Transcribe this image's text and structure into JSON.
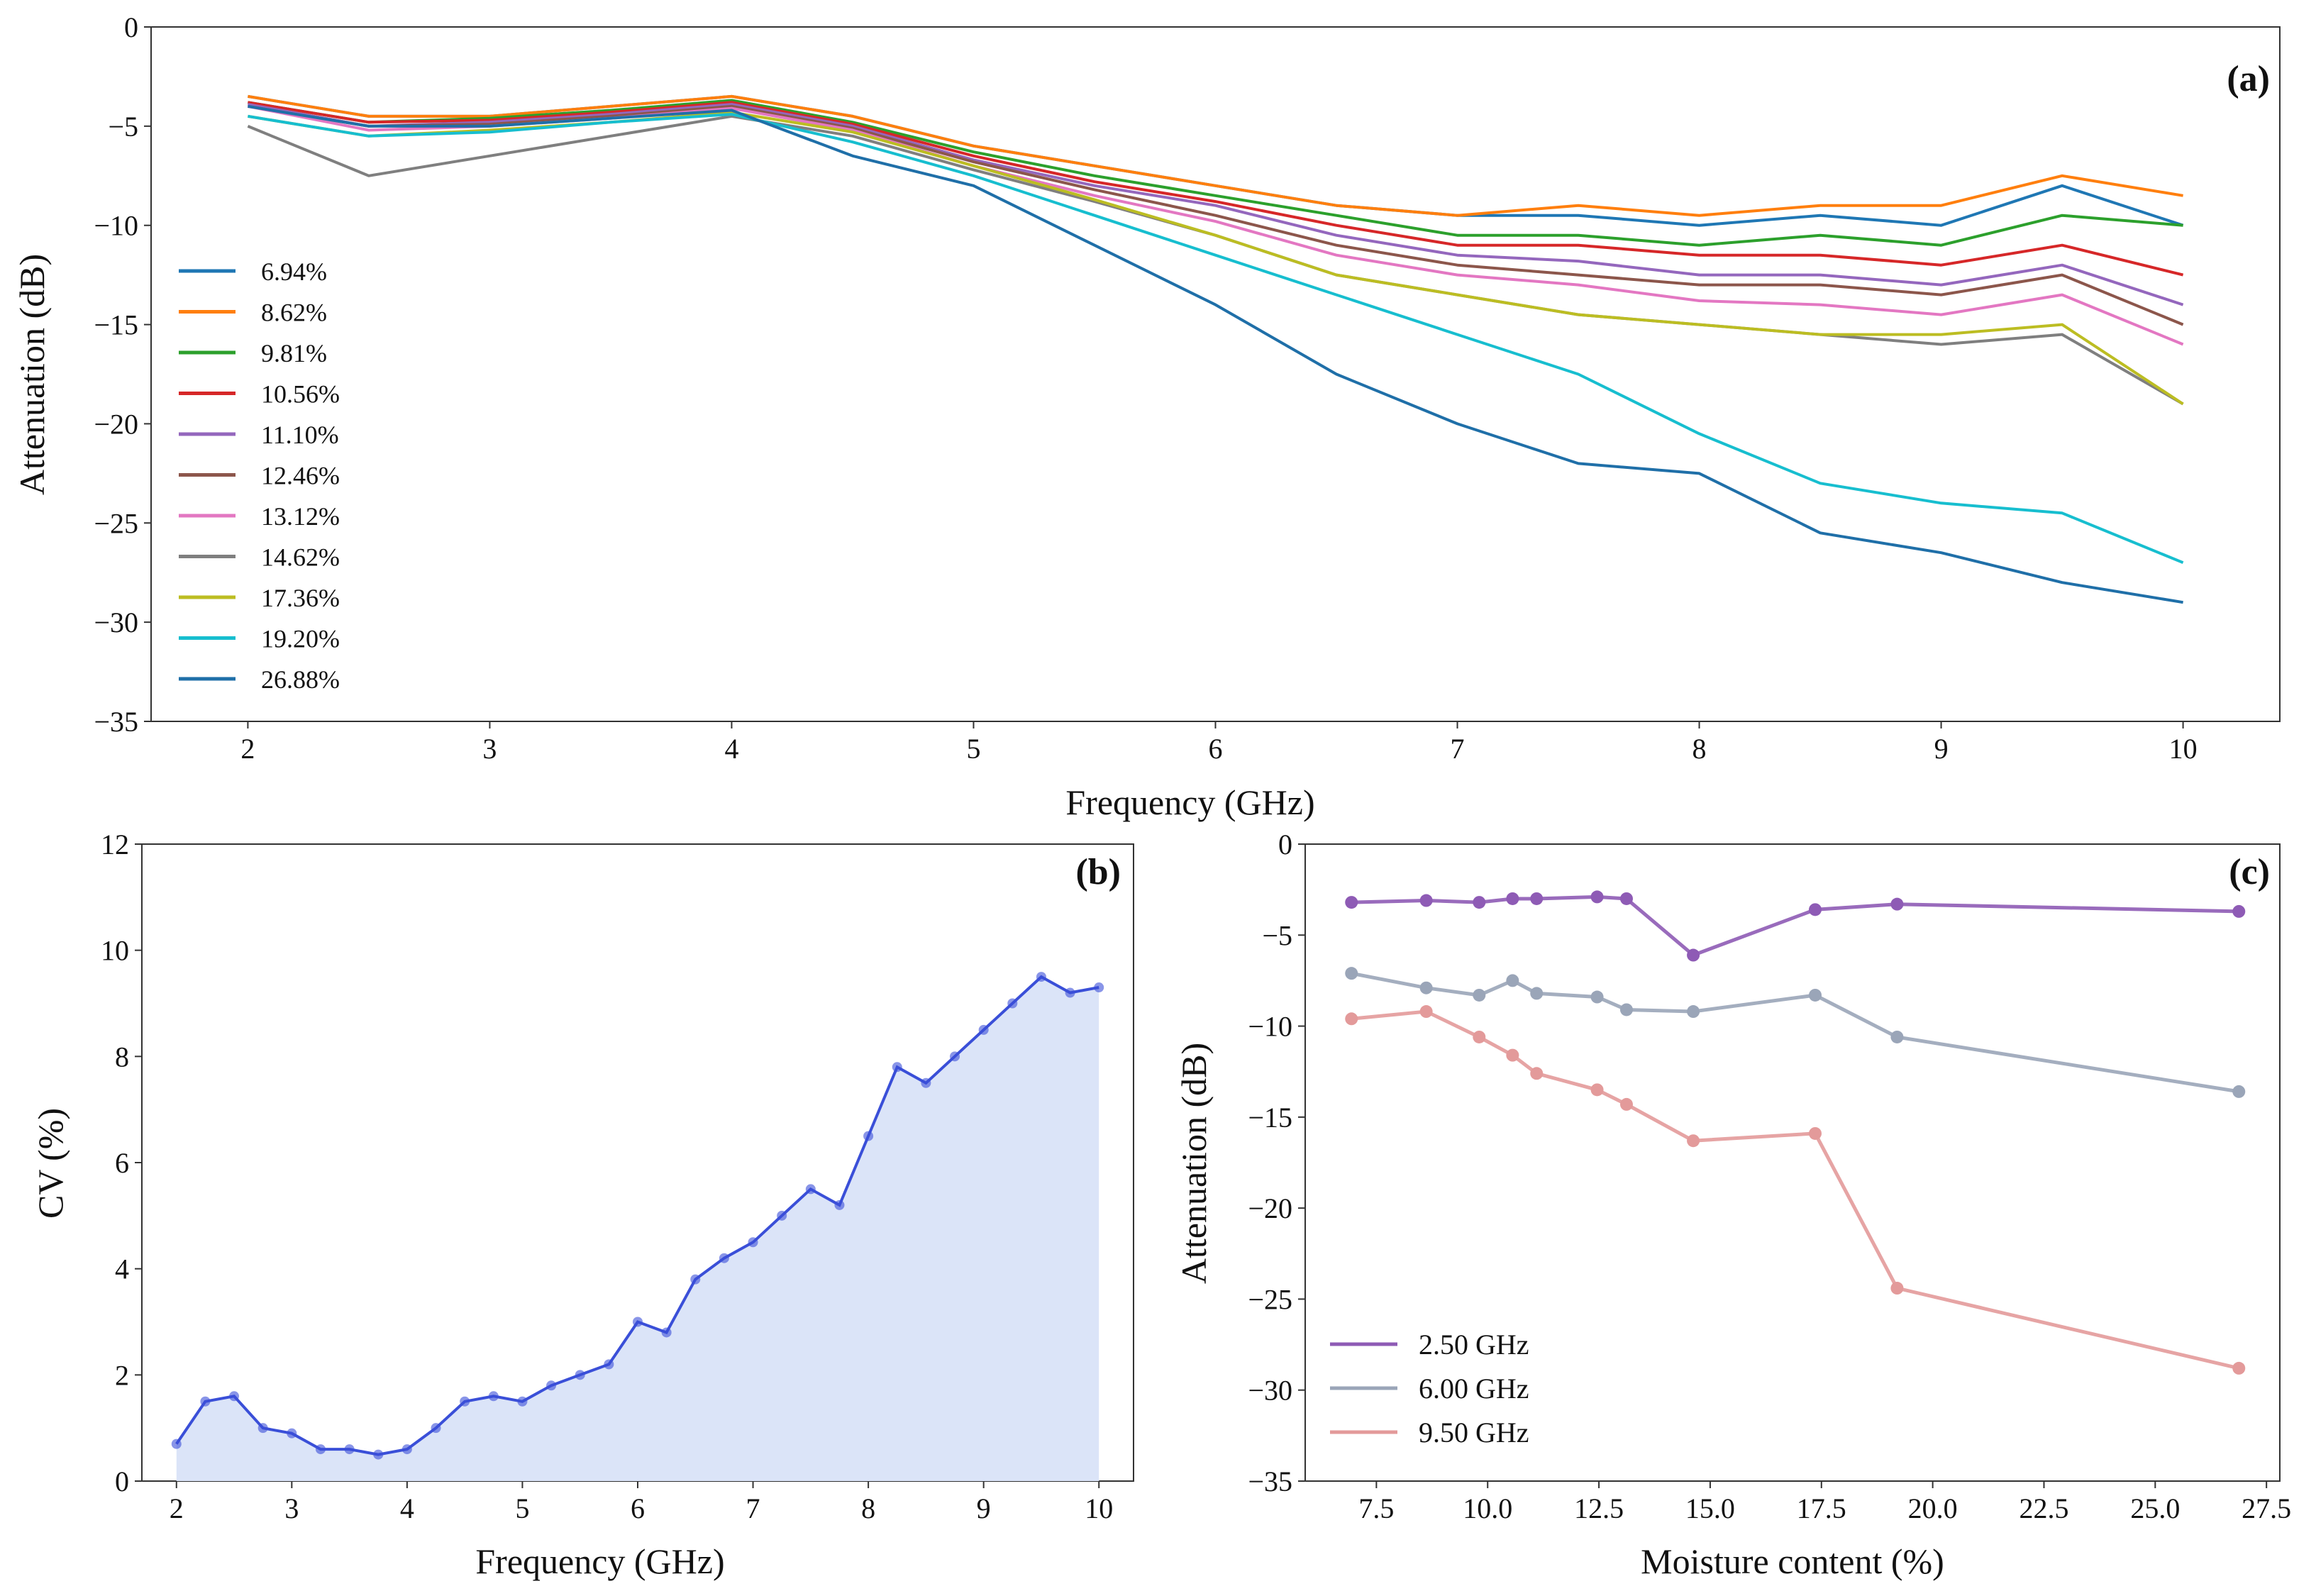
{
  "chart_data": [
    {
      "panel": "(a)",
      "type": "line",
      "xlabel": "Frequency (GHz)",
      "ylabel": "Attenuation (dB)",
      "xlim": [
        1.6,
        10.4
      ],
      "ylim": [
        -35,
        0
      ],
      "xticks": [
        2,
        3,
        4,
        5,
        6,
        7,
        8,
        9,
        10
      ],
      "yticks": [
        0,
        -5,
        -10,
        -15,
        -20,
        -25,
        -30,
        -35
      ],
      "grid": false,
      "legend_position": "left",
      "x": [
        2.0,
        2.5,
        3.0,
        3.5,
        4.0,
        4.5,
        5.0,
        5.5,
        6.0,
        6.5,
        7.0,
        7.5,
        8.0,
        8.5,
        9.0,
        9.5,
        10.0
      ],
      "series": [
        {
          "name": "6.94%",
          "color": "#1f77b4",
          "values": [
            -3.5,
            -4.5,
            -4.5,
            -4.0,
            -3.5,
            -4.5,
            -6.0,
            -7.0,
            -8.0,
            -9.0,
            -9.5,
            -9.5,
            -10.0,
            -9.5,
            -10.0,
            -8.0,
            -10.0
          ]
        },
        {
          "name": "8.62%",
          "color": "#ff7f0e",
          "values": [
            -3.5,
            -4.5,
            -4.5,
            -4.0,
            -3.5,
            -4.5,
            -6.0,
            -7.0,
            -8.0,
            -9.0,
            -9.5,
            -9.0,
            -9.5,
            -9.0,
            -9.0,
            -7.5,
            -8.5
          ]
        },
        {
          "name": "9.81%",
          "color": "#2ca02c",
          "values": [
            -3.8,
            -4.8,
            -4.6,
            -4.2,
            -3.7,
            -4.8,
            -6.3,
            -7.5,
            -8.5,
            -9.5,
            -10.5,
            -10.5,
            -11.0,
            -10.5,
            -11.0,
            -9.5,
            -10.0
          ]
        },
        {
          "name": "10.56%",
          "color": "#d62728",
          "values": [
            -3.8,
            -4.8,
            -4.7,
            -4.3,
            -3.8,
            -4.9,
            -6.5,
            -7.8,
            -8.8,
            -10.0,
            -11.0,
            -11.0,
            -11.5,
            -11.5,
            -12.0,
            -11.0,
            -12.5
          ]
        },
        {
          "name": "11.10%",
          "color": "#9467bd",
          "values": [
            -3.9,
            -5.0,
            -4.8,
            -4.4,
            -3.9,
            -5.0,
            -6.7,
            -8.0,
            -9.0,
            -10.5,
            -11.5,
            -11.8,
            -12.5,
            -12.5,
            -13.0,
            -12.0,
            -14.0
          ]
        },
        {
          "name": "12.46%",
          "color": "#8c564b",
          "values": [
            -4.0,
            -5.0,
            -4.9,
            -4.5,
            -4.0,
            -5.1,
            -6.8,
            -8.2,
            -9.5,
            -11.0,
            -12.0,
            -12.5,
            -13.0,
            -13.0,
            -13.5,
            -12.5,
            -15.0
          ]
        },
        {
          "name": "13.12%",
          "color": "#e377c2",
          "values": [
            -4.0,
            -5.2,
            -5.0,
            -4.6,
            -4.1,
            -5.2,
            -7.0,
            -8.5,
            -9.8,
            -11.5,
            -12.5,
            -13.0,
            -13.8,
            -14.0,
            -14.5,
            -13.5,
            -16.0
          ]
        },
        {
          "name": "14.62%",
          "color": "#7f7f7f",
          "values": [
            -5.0,
            -7.5,
            -6.5,
            -5.5,
            -4.5,
            -5.5,
            -7.2,
            -8.8,
            -10.5,
            -12.5,
            -13.5,
            -14.5,
            -15.0,
            -15.5,
            -16.0,
            -15.5,
            -19.0
          ]
        },
        {
          "name": "17.36%",
          "color": "#bcbd22",
          "values": [
            -4.5,
            -5.5,
            -5.2,
            -4.8,
            -4.3,
            -5.3,
            -7.0,
            -8.7,
            -10.5,
            -12.5,
            -13.5,
            -14.5,
            -15.0,
            -15.5,
            -15.5,
            -15.0,
            -19.0
          ]
        },
        {
          "name": "19.20%",
          "color": "#17becf",
          "values": [
            -4.5,
            -5.5,
            -5.3,
            -4.8,
            -4.4,
            -5.8,
            -7.5,
            -9.5,
            -11.5,
            -13.5,
            -15.5,
            -17.5,
            -20.5,
            -23.0,
            -24.0,
            -24.5,
            -27.0
          ]
        },
        {
          "name": "26.88%",
          "color": "#1f6fa8",
          "values": [
            -4.0,
            -5.0,
            -5.0,
            -4.6,
            -4.2,
            -6.5,
            -8.0,
            -11.0,
            -14.0,
            -17.5,
            -20.0,
            -22.0,
            -22.5,
            -25.5,
            -26.5,
            -28.0,
            -29.0
          ]
        }
      ]
    },
    {
      "panel": "(b)",
      "type": "area",
      "xlabel": "Frequency (GHz)",
      "ylabel": "CV  (%)",
      "xlim": [
        1.7,
        10.3
      ],
      "ylim": [
        0,
        12
      ],
      "xticks": [
        2,
        3,
        4,
        5,
        6,
        7,
        8,
        9,
        10
      ],
      "yticks": [
        0,
        2,
        4,
        6,
        8,
        10,
        12
      ],
      "grid": false,
      "line_color": "#3a4fd8",
      "fill_color": "#dbe4f8",
      "x": [
        2.0,
        2.25,
        2.5,
        2.75,
        3.0,
        3.25,
        3.5,
        3.75,
        4.0,
        4.25,
        4.5,
        4.75,
        5.0,
        5.25,
        5.5,
        5.75,
        6.0,
        6.25,
        6.5,
        6.75,
        7.0,
        7.25,
        7.5,
        7.75,
        8.0,
        8.25,
        8.5,
        8.75,
        9.0,
        9.25,
        9.5,
        9.75,
        10.0
      ],
      "values": [
        0.7,
        1.5,
        1.6,
        1.0,
        0.9,
        0.6,
        0.6,
        0.5,
        0.6,
        1.0,
        1.5,
        1.6,
        1.5,
        1.8,
        2.0,
        2.2,
        3.0,
        2.8,
        3.8,
        4.2,
        4.5,
        5.0,
        5.5,
        5.2,
        6.5,
        7.8,
        7.5,
        8.0,
        8.5,
        9.0,
        9.5,
        9.2,
        9.3
      ]
    },
    {
      "panel": "(c)",
      "type": "line",
      "xlabel": "Moisture content (%)",
      "ylabel": "Attenuation (dB)",
      "xlim": [
        5.9,
        27.8
      ],
      "ylim": [
        -35,
        0
      ],
      "xticks": [
        7.5,
        10.0,
        12.5,
        15.0,
        17.5,
        20.0,
        22.5,
        25.0,
        27.5
      ],
      "yticks": [
        0,
        -5,
        -10,
        -15,
        -20,
        -25,
        -30,
        -35
      ],
      "grid": false,
      "legend_position": "bottom-left",
      "x": [
        6.94,
        8.62,
        9.81,
        10.56,
        11.1,
        12.46,
        13.12,
        14.62,
        17.36,
        19.2,
        26.88
      ],
      "series": [
        {
          "name": "2.50 GHz",
          "color": "#8e5bb5",
          "values": [
            -3.2,
            -3.1,
            -3.2,
            -3.0,
            -3.0,
            -2.9,
            -3.0,
            -6.1,
            -3.6,
            -3.3,
            -3.7
          ]
        },
        {
          "name": "6.00 GHz",
          "color": "#9aa5b8",
          "values": [
            -7.1,
            -7.9,
            -8.3,
            -7.5,
            -8.2,
            -8.4,
            -9.1,
            -9.2,
            -8.3,
            -10.6,
            -13.6
          ]
        },
        {
          "name": "9.50 GHz",
          "color": "#e39a9a",
          "values": [
            -9.6,
            -9.2,
            -10.6,
            -11.6,
            -12.6,
            -13.5,
            -14.3,
            -16.3,
            -15.9,
            -24.4,
            -28.8
          ]
        }
      ]
    }
  ]
}
